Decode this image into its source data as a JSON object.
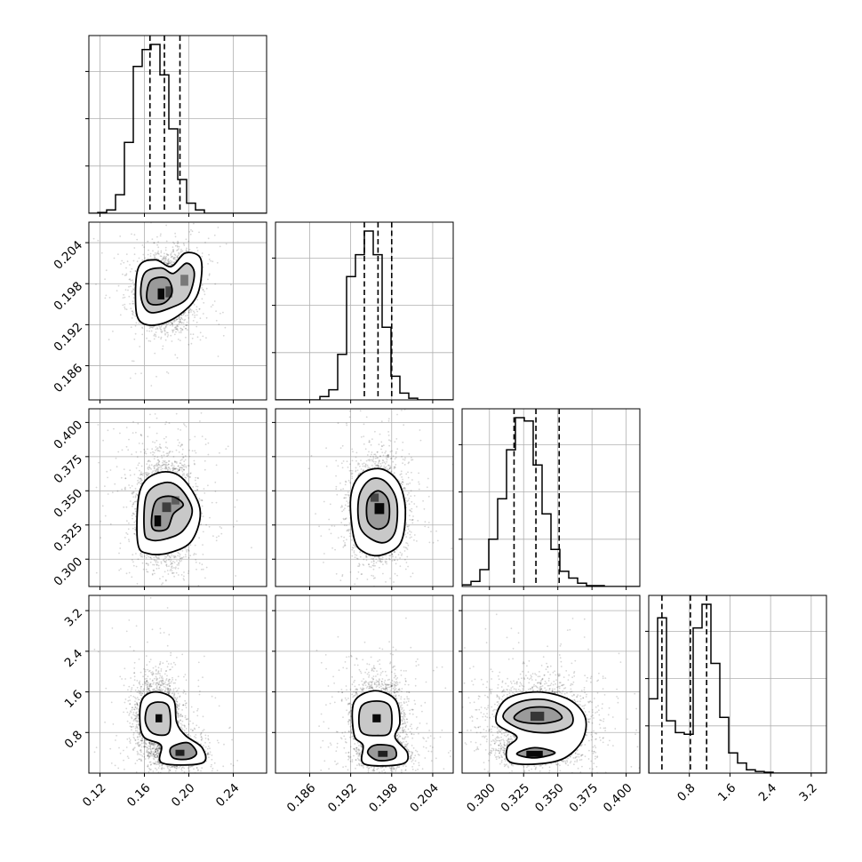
{
  "chart_data": {
    "type": "corner",
    "grid": true,
    "parameters": [
      {
        "range": [
          0.11,
          0.27
        ],
        "ticks": [
          0.12,
          0.16,
          0.2,
          0.24
        ],
        "tick_labels": [
          "0.12",
          "0.16",
          "0.20",
          "0.24"
        ],
        "quantiles": [
          0.165,
          0.178,
          0.192
        ],
        "histogram": [
          0,
          0.005,
          0.02,
          0.11,
          0.42,
          0.87,
          0.97,
          1.0,
          0.82,
          0.5,
          0.2,
          0.06,
          0.02,
          0,
          0,
          0,
          0,
          0,
          0,
          0
        ]
      },
      {
        "range": [
          0.181,
          0.207
        ],
        "ticks": [
          0.186,
          0.192,
          0.198,
          0.204
        ],
        "tick_labels": [
          "0.186",
          "0.192",
          "0.198",
          "0.204"
        ],
        "quantiles": [
          0.194,
          0.196,
          0.198
        ],
        "histogram": [
          0,
          0,
          0,
          0,
          0,
          0.02,
          0.06,
          0.27,
          0.73,
          0.86,
          1.0,
          0.86,
          0.43,
          0.14,
          0.04,
          0.01,
          0,
          0,
          0,
          0
        ]
      },
      {
        "range": [
          0.28,
          0.41
        ],
        "ticks": [
          0.3,
          0.325,
          0.35,
          0.375,
          0.4
        ],
        "tick_labels": [
          "0.300",
          "0.325",
          "0.350",
          "0.375",
          "0.400"
        ],
        "quantiles": [
          0.318,
          0.334,
          0.351
        ],
        "histogram": [
          0.01,
          0.03,
          0.1,
          0.28,
          0.52,
          0.81,
          1.0,
          0.98,
          0.72,
          0.43,
          0.22,
          0.09,
          0.05,
          0.02,
          0.005,
          0.005,
          0,
          0,
          0,
          0
        ]
      },
      {
        "range": [
          0,
          3.5
        ],
        "ticks": [
          0.8,
          1.6,
          2.4,
          3.2
        ],
        "tick_labels": [
          "0.8",
          "1.6",
          "2.4",
          "3.2"
        ],
        "quantiles": [
          0.26,
          0.82,
          1.14
        ],
        "histogram": [
          0.44,
          0.92,
          0.31,
          0.24,
          0.23,
          0.86,
          1.0,
          0.65,
          0.33,
          0.12,
          0.06,
          0.02,
          0.01,
          0.005,
          0,
          0,
          0,
          0,
          0,
          0
        ]
      }
    ],
    "pairs": [
      {
        "row": 1,
        "col": 0,
        "core": [
          {
            "x": 0.177,
            "y": 0.1965,
            "sx": 0.011,
            "sy": 0.0023,
            "n": 2800
          },
          {
            "x": 0.192,
            "y": 0.1985,
            "sx": 0.008,
            "sy": 0.002,
            "n": 900
          }
        ],
        "contours": [
          [
            [
              0.152,
              0.1955
            ],
            [
              0.155,
              0.2005
            ],
            [
              0.17,
              0.2015
            ],
            [
              0.184,
              0.2005
            ],
            [
              0.197,
              0.2025
            ],
            [
              0.211,
              0.2015
            ],
            [
              0.208,
              0.1965
            ],
            [
              0.192,
              0.1935
            ],
            [
              0.172,
              0.192
            ],
            [
              0.156,
              0.1925
            ]
          ],
          [
            [
              0.157,
              0.196
            ],
            [
              0.16,
              0.1995
            ],
            [
              0.175,
              0.2003
            ],
            [
              0.186,
              0.1995
            ],
            [
              0.198,
              0.201
            ],
            [
              0.205,
              0.1995
            ],
            [
              0.199,
              0.196
            ],
            [
              0.184,
              0.1945
            ],
            [
              0.165,
              0.1938
            ]
          ],
          [
            [
              0.162,
              0.1962
            ],
            [
              0.166,
              0.1985
            ],
            [
              0.18,
              0.1988
            ],
            [
              0.185,
              0.1968
            ],
            [
              0.178,
              0.1952
            ],
            [
              0.166,
              0.195
            ]
          ]
        ],
        "dense": [
          {
            "x": 0.175,
            "y": 0.1965,
            "w": 0.006,
            "h": 0.0016,
            "op": 0.95
          },
          {
            "x": 0.182,
            "y": 0.1968,
            "w": 0.006,
            "h": 0.0016,
            "op": 0.55
          },
          {
            "x": 0.196,
            "y": 0.1985,
            "w": 0.007,
            "h": 0.0016,
            "op": 0.4
          }
        ]
      },
      {
        "row": 2,
        "col": 0,
        "core": [
          {
            "x": 0.178,
            "y": 0.335,
            "sx": 0.012,
            "sy": 0.018,
            "n": 3200
          }
        ],
        "contours": [
          [
            [
              0.154,
              0.312
            ],
            [
              0.156,
              0.35
            ],
            [
              0.172,
              0.363
            ],
            [
              0.193,
              0.36
            ],
            [
              0.21,
              0.337
            ],
            [
              0.203,
              0.314
            ],
            [
              0.184,
              0.305
            ],
            [
              0.164,
              0.304
            ]
          ],
          [
            [
              0.16,
              0.32
            ],
            [
              0.162,
              0.347
            ],
            [
              0.178,
              0.356
            ],
            [
              0.192,
              0.352
            ],
            [
              0.203,
              0.336
            ],
            [
              0.195,
              0.321
            ],
            [
              0.18,
              0.315
            ],
            [
              0.166,
              0.314
            ]
          ],
          [
            [
              0.167,
              0.323
            ],
            [
              0.17,
              0.342
            ],
            [
              0.184,
              0.346
            ],
            [
              0.195,
              0.34
            ],
            [
              0.186,
              0.333
            ],
            [
              0.18,
              0.322
            ]
          ]
        ],
        "dense": [
          {
            "x": 0.172,
            "y": 0.328,
            "w": 0.006,
            "h": 0.008,
            "op": 0.95
          },
          {
            "x": 0.18,
            "y": 0.338,
            "w": 0.008,
            "h": 0.007,
            "op": 0.6
          },
          {
            "x": 0.188,
            "y": 0.343,
            "w": 0.007,
            "h": 0.006,
            "op": 0.4
          }
        ]
      },
      {
        "row": 2,
        "col": 1,
        "core": [
          {
            "x": 0.196,
            "y": 0.336,
            "sx": 0.0018,
            "sy": 0.017,
            "n": 3200
          }
        ],
        "contours": [
          [
            [
              0.1925,
              0.315
            ],
            [
              0.192,
              0.345
            ],
            [
              0.1935,
              0.362
            ],
            [
              0.1965,
              0.366
            ],
            [
              0.199,
              0.356
            ],
            [
              0.2,
              0.336
            ],
            [
              0.1993,
              0.312
            ],
            [
              0.1965,
              0.303
            ],
            [
              0.194,
              0.305
            ]
          ],
          [
            [
              0.1935,
              0.322
            ],
            [
              0.1932,
              0.345
            ],
            [
              0.1948,
              0.358
            ],
            [
              0.197,
              0.357
            ],
            [
              0.1987,
              0.343
            ],
            [
              0.1985,
              0.32
            ],
            [
              0.1965,
              0.312
            ]
          ],
          [
            [
              0.1945,
              0.328
            ],
            [
              0.1945,
              0.343
            ],
            [
              0.196,
              0.35
            ],
            [
              0.1975,
              0.343
            ],
            [
              0.1975,
              0.327
            ],
            [
              0.196,
              0.322
            ]
          ]
        ],
        "dense": [
          {
            "x": 0.1962,
            "y": 0.337,
            "w": 0.0014,
            "h": 0.008,
            "op": 0.95
          },
          {
            "x": 0.1955,
            "y": 0.345,
            "w": 0.0012,
            "h": 0.006,
            "op": 0.55
          }
        ]
      },
      {
        "row": 3,
        "col": 0,
        "core": [
          {
            "x": 0.172,
            "y": 1.1,
            "sx": 0.01,
            "sy": 0.38,
            "n": 2400
          },
          {
            "x": 0.19,
            "y": 0.4,
            "sx": 0.011,
            "sy": 0.13,
            "n": 1300
          }
        ],
        "contours": [
          [
            [
              0.156,
              1.0
            ],
            [
              0.158,
              1.45
            ],
            [
              0.17,
              1.6
            ],
            [
              0.186,
              1.45
            ],
            [
              0.189,
              1.0
            ],
            [
              0.197,
              0.74
            ],
            [
              0.212,
              0.5
            ],
            [
              0.212,
              0.2
            ],
            [
              0.176,
              0.2
            ],
            [
              0.175,
              0.55
            ],
            [
              0.16,
              0.7
            ]
          ],
          [
            [
              0.161,
              1.0
            ],
            [
              0.163,
              1.3
            ],
            [
              0.172,
              1.4
            ],
            [
              0.182,
              1.3
            ],
            [
              0.182,
              0.8
            ],
            [
              0.168,
              0.78
            ]
          ],
          [
            [
              0.184,
              0.5
            ],
            [
              0.199,
              0.6
            ],
            [
              0.207,
              0.4
            ],
            [
              0.2,
              0.28
            ],
            [
              0.186,
              0.3
            ]
          ]
        ],
        "dense": [
          {
            "x": 0.173,
            "y": 1.08,
            "w": 0.006,
            "h": 0.16,
            "op": 0.95
          },
          {
            "x": 0.192,
            "y": 0.4,
            "w": 0.008,
            "h": 0.12,
            "op": 0.8
          }
        ]
      },
      {
        "row": 3,
        "col": 1,
        "core": [
          {
            "x": 0.196,
            "y": 1.08,
            "sx": 0.0018,
            "sy": 0.38,
            "n": 2400
          },
          {
            "x": 0.1968,
            "y": 0.38,
            "sx": 0.0018,
            "sy": 0.13,
            "n": 1300
          }
        ],
        "contours": [
          [
            [
              0.1925,
              0.75
            ],
            [
              0.1925,
              1.4
            ],
            [
              0.1955,
              1.62
            ],
            [
              0.1985,
              1.45
            ],
            [
              0.1992,
              1.0
            ],
            [
              0.1985,
              0.7
            ],
            [
              0.2003,
              0.4
            ],
            [
              0.1995,
              0.18
            ],
            [
              0.194,
              0.18
            ],
            [
              0.1938,
              0.55
            ]
          ],
          [
            [
              0.1935,
              0.82
            ],
            [
              0.1935,
              1.3
            ],
            [
              0.1958,
              1.42
            ],
            [
              0.1978,
              1.3
            ],
            [
              0.1978,
              0.82
            ],
            [
              0.196,
              0.74
            ]
          ],
          [
            [
              0.1945,
              0.4
            ],
            [
              0.1955,
              0.55
            ],
            [
              0.1982,
              0.52
            ],
            [
              0.1985,
              0.3
            ],
            [
              0.196,
              0.25
            ]
          ]
        ],
        "dense": [
          {
            "x": 0.1958,
            "y": 1.08,
            "w": 0.0012,
            "h": 0.16,
            "op": 0.95
          },
          {
            "x": 0.1967,
            "y": 0.38,
            "w": 0.0014,
            "h": 0.12,
            "op": 0.8
          }
        ]
      },
      {
        "row": 3,
        "col": 2,
        "core": [
          {
            "x": 0.337,
            "y": 1.05,
            "sx": 0.017,
            "sy": 0.38,
            "n": 2500
          },
          {
            "x": 0.333,
            "y": 0.38,
            "sx": 0.012,
            "sy": 0.1,
            "n": 1200
          }
        ],
        "contours": [
          [
            [
              0.305,
              1.0
            ],
            [
              0.312,
              1.45
            ],
            [
              0.335,
              1.6
            ],
            [
              0.358,
              1.45
            ],
            [
              0.37,
              1.1
            ],
            [
              0.368,
              0.65
            ],
            [
              0.355,
              0.3
            ],
            [
              0.335,
              0.18
            ],
            [
              0.315,
              0.22
            ],
            [
              0.313,
              0.5
            ],
            [
              0.32,
              0.72
            ]
          ],
          [
            [
              0.31,
              1.1
            ],
            [
              0.32,
              1.38
            ],
            [
              0.34,
              1.45
            ],
            [
              0.358,
              1.25
            ],
            [
              0.36,
              0.95
            ],
            [
              0.345,
              0.8
            ],
            [
              0.325,
              0.85
            ]
          ],
          [
            [
              0.318,
              1.1
            ],
            [
              0.328,
              1.28
            ],
            [
              0.345,
              1.28
            ],
            [
              0.353,
              1.08
            ],
            [
              0.34,
              0.98
            ],
            [
              0.325,
              1.0
            ]
          ],
          [
            [
              0.32,
              0.38
            ],
            [
              0.333,
              0.5
            ],
            [
              0.348,
              0.4
            ],
            [
              0.333,
              0.3
            ]
          ]
        ],
        "dense": [
          {
            "x": 0.335,
            "y": 1.12,
            "w": 0.01,
            "h": 0.18,
            "op": 0.65
          },
          {
            "x": 0.333,
            "y": 0.38,
            "w": 0.012,
            "h": 0.12,
            "op": 0.95
          }
        ]
      }
    ]
  }
}
